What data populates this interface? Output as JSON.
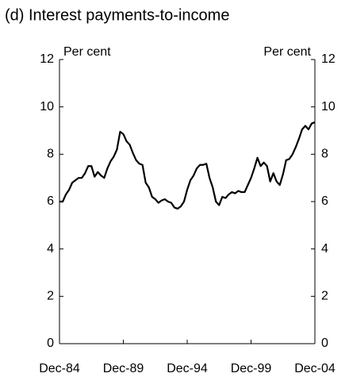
{
  "chart_data": {
    "type": "line",
    "title": "(d) Interest payments-to-income",
    "ylabel": "Per cent",
    "y2label": "Per cent",
    "categories": [
      "Dec-84",
      null,
      null,
      null,
      null,
      null,
      null,
      null,
      null,
      null,
      null,
      null,
      null,
      null,
      null,
      null,
      null,
      null,
      null,
      null,
      "Dec-89",
      null,
      null,
      null,
      null,
      null,
      null,
      null,
      null,
      null,
      null,
      null,
      null,
      null,
      null,
      null,
      null,
      null,
      null,
      null,
      "Dec-94",
      null,
      null,
      null,
      null,
      null,
      null,
      null,
      null,
      null,
      null,
      null,
      null,
      null,
      null,
      null,
      null,
      null,
      null,
      null,
      "Dec-99",
      null,
      null,
      null,
      null,
      null,
      null,
      null,
      null,
      null,
      null,
      null,
      null,
      null,
      null,
      null,
      null,
      null,
      null,
      null,
      "Dec-04"
    ],
    "series": [
      {
        "color": "#000000",
        "values": [
          6.0,
          6.0,
          6.3,
          6.5,
          6.8,
          6.9,
          7.0,
          7.0,
          7.2,
          7.5,
          7.5,
          7.05,
          7.25,
          7.1,
          7.0,
          7.4,
          7.7,
          7.9,
          8.2,
          8.95,
          8.85,
          8.55,
          8.4,
          8.05,
          7.75,
          7.6,
          7.55,
          6.8,
          6.6,
          6.2,
          6.1,
          5.95,
          6.05,
          6.1,
          6.0,
          5.95,
          5.75,
          5.7,
          5.8,
          6.0,
          6.5,
          6.9,
          7.1,
          7.4,
          7.55,
          7.55,
          7.6,
          7.0,
          6.6,
          6.0,
          5.85,
          6.2,
          6.15,
          6.3,
          6.4,
          6.35,
          6.45,
          6.4,
          6.4,
          6.7,
          7.0,
          7.4,
          7.85,
          7.5,
          7.65,
          7.5,
          6.85,
          7.2,
          6.85,
          6.7,
          7.15,
          7.75,
          7.8,
          8.0,
          8.3,
          8.65,
          9.05,
          9.2,
          9.05,
          9.3,
          9.35
        ]
      }
    ],
    "ylim": [
      0,
      12
    ],
    "yticks": [
      0,
      2,
      4,
      6,
      8,
      10,
      12
    ],
    "y2lim": [
      0,
      12
    ],
    "y2ticks": [
      0,
      2,
      4,
      6,
      8,
      10,
      12
    ],
    "grid": false
  }
}
